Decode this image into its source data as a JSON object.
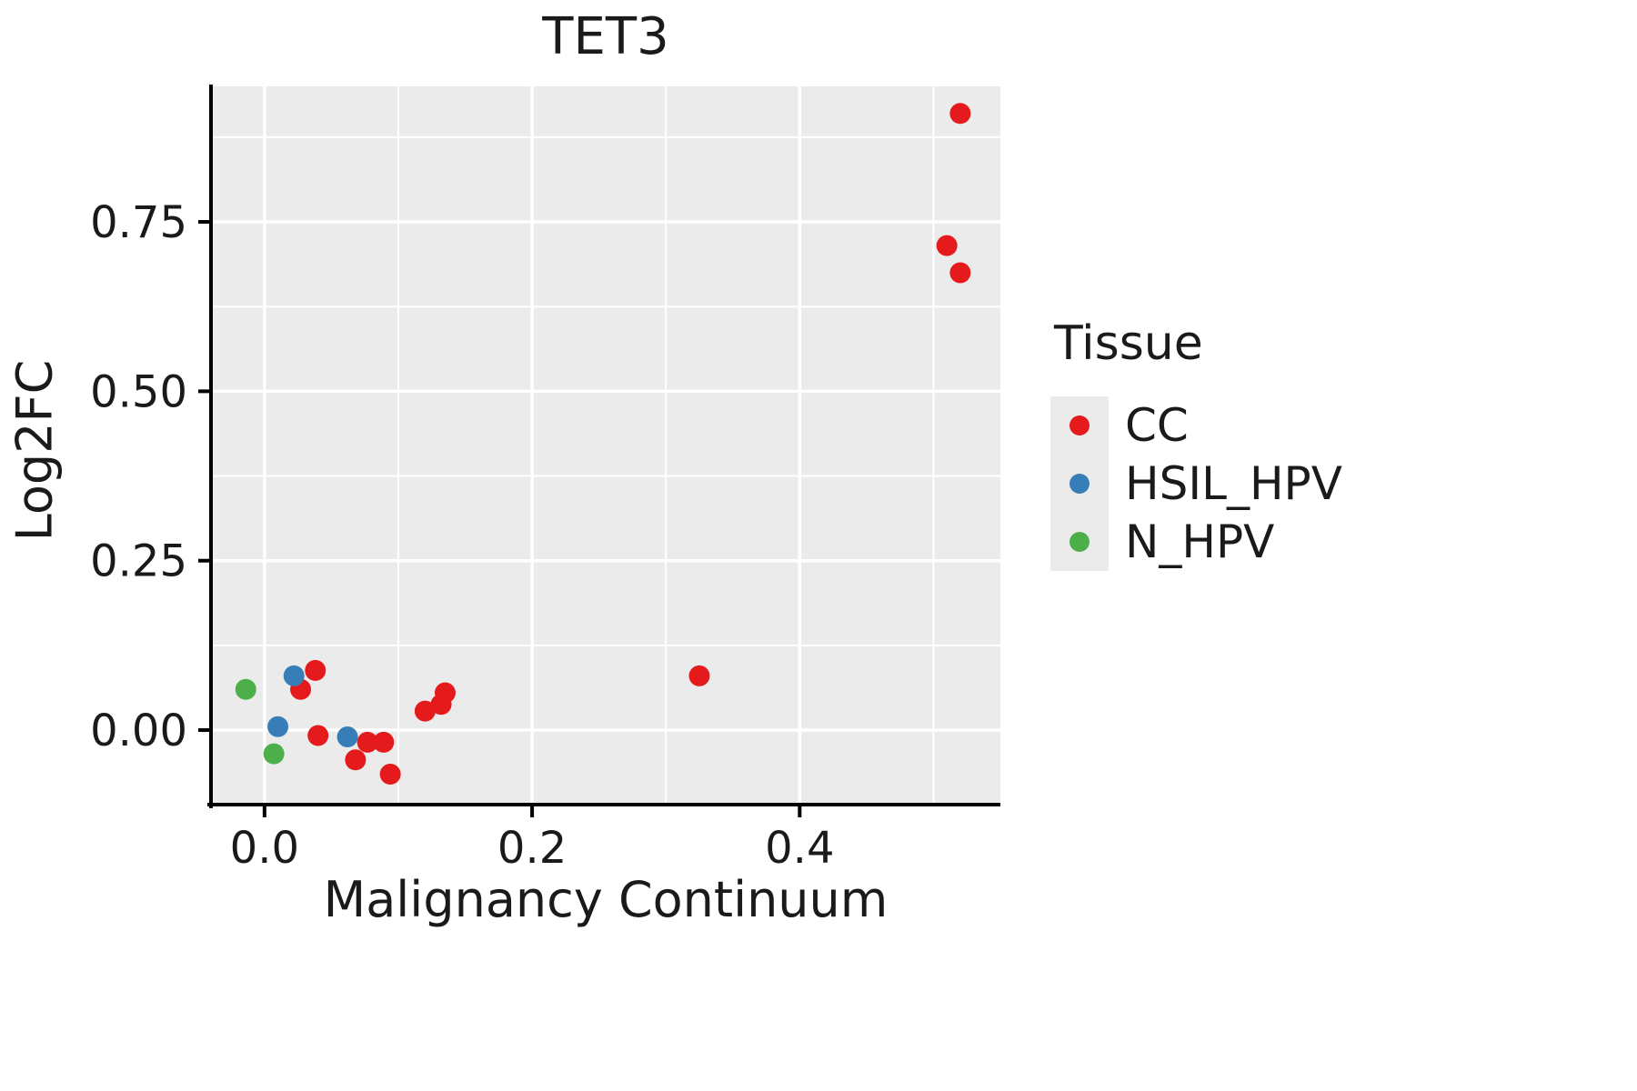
{
  "title": "TET3",
  "legend": {
    "title": "Tissue",
    "entries": [
      {
        "label": "CC",
        "color": "#e41a1c"
      },
      {
        "label": "HSIL_HPV",
        "color": "#377eb8"
      },
      {
        "label": "N_HPV",
        "color": "#4daf4a"
      }
    ]
  },
  "chart_data": {
    "type": "scatter",
    "title": "TET3",
    "xlabel": "Malignancy Continuum",
    "ylabel": "Log2FC",
    "xlim": [
      -0.04,
      0.55
    ],
    "ylim": [
      -0.11,
      0.95
    ],
    "x_major_ticks": [
      0.0,
      0.2,
      0.4
    ],
    "x_minor_ticks": [
      0.1,
      0.3,
      0.5
    ],
    "x_tick_labels": [
      "0.0",
      "0.2",
      "0.4"
    ],
    "y_major_ticks": [
      0.0,
      0.25,
      0.5,
      0.75
    ],
    "y_minor_ticks": [
      0.125,
      0.375,
      0.625,
      0.875
    ],
    "y_tick_labels": [
      "0.00",
      "0.25",
      "0.50",
      "0.75"
    ],
    "panel_bg": "#ebebeb",
    "grid_color": "#ffffff",
    "legend_position": "right",
    "series": [
      {
        "name": "CC",
        "color": "#e41a1c",
        "points": [
          [
            0.52,
            0.91
          ],
          [
            0.51,
            0.715
          ],
          [
            0.52,
            0.675
          ],
          [
            0.325,
            0.08
          ],
          [
            0.038,
            0.088
          ],
          [
            0.027,
            0.06
          ],
          [
            0.135,
            0.055
          ],
          [
            0.132,
            0.038
          ],
          [
            0.12,
            0.028
          ],
          [
            0.04,
            -0.008
          ],
          [
            0.077,
            -0.018
          ],
          [
            0.089,
            -0.018
          ],
          [
            0.068,
            -0.044
          ],
          [
            0.094,
            -0.065
          ]
        ]
      },
      {
        "name": "HSIL_HPV",
        "color": "#377eb8",
        "points": [
          [
            0.022,
            0.08
          ],
          [
            0.01,
            0.005
          ],
          [
            0.062,
            -0.01
          ]
        ]
      },
      {
        "name": "N_HPV",
        "color": "#4daf4a",
        "points": [
          [
            -0.014,
            0.06
          ],
          [
            0.007,
            -0.035
          ]
        ]
      }
    ]
  }
}
